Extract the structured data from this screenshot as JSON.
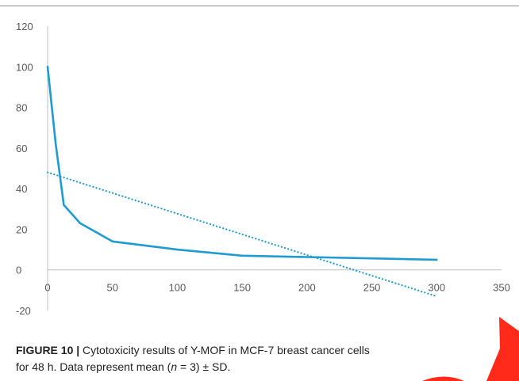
{
  "caption": {
    "label": "FIGURE 10",
    "separator": "|",
    "line1": " Cytotoxicity results of Y-MOF in MCF-7 breast cancer cells",
    "line2_prefix": "for 48 h. Data represent mean (",
    "line2_n": "n",
    "line2_suffix": " = 3) ± SD."
  },
  "chart_data": {
    "type": "line",
    "title": "",
    "xlabel": "",
    "ylabel": "",
    "xlim": [
      0,
      350
    ],
    "ylim": [
      -20,
      120
    ],
    "x_ticks": [
      "0",
      "50",
      "100",
      "150",
      "200",
      "250",
      "300",
      "350"
    ],
    "y_ticks": [
      "120",
      "100",
      "80",
      "60",
      "40",
      "20",
      "0",
      "-20"
    ],
    "grid": false,
    "legend": "none",
    "series": [
      {
        "style": "solid",
        "color": "#1f9bd1",
        "x": [
          0,
          6.25,
          12.5,
          25,
          50,
          100,
          150,
          300
        ],
        "y": [
          100,
          62,
          32,
          23,
          14,
          10,
          7,
          5
        ]
      },
      {
        "style": "dotted",
        "kind": "linear trendline",
        "color": "#1f9bd1",
        "x": [
          0,
          300
        ],
        "y": [
          48,
          -13
        ]
      }
    ]
  },
  "colors": {
    "series": "#1f9bd1",
    "axis": "#bfbfbf",
    "tick_text": "#595959",
    "red_mark": "#ff2a1a"
  }
}
